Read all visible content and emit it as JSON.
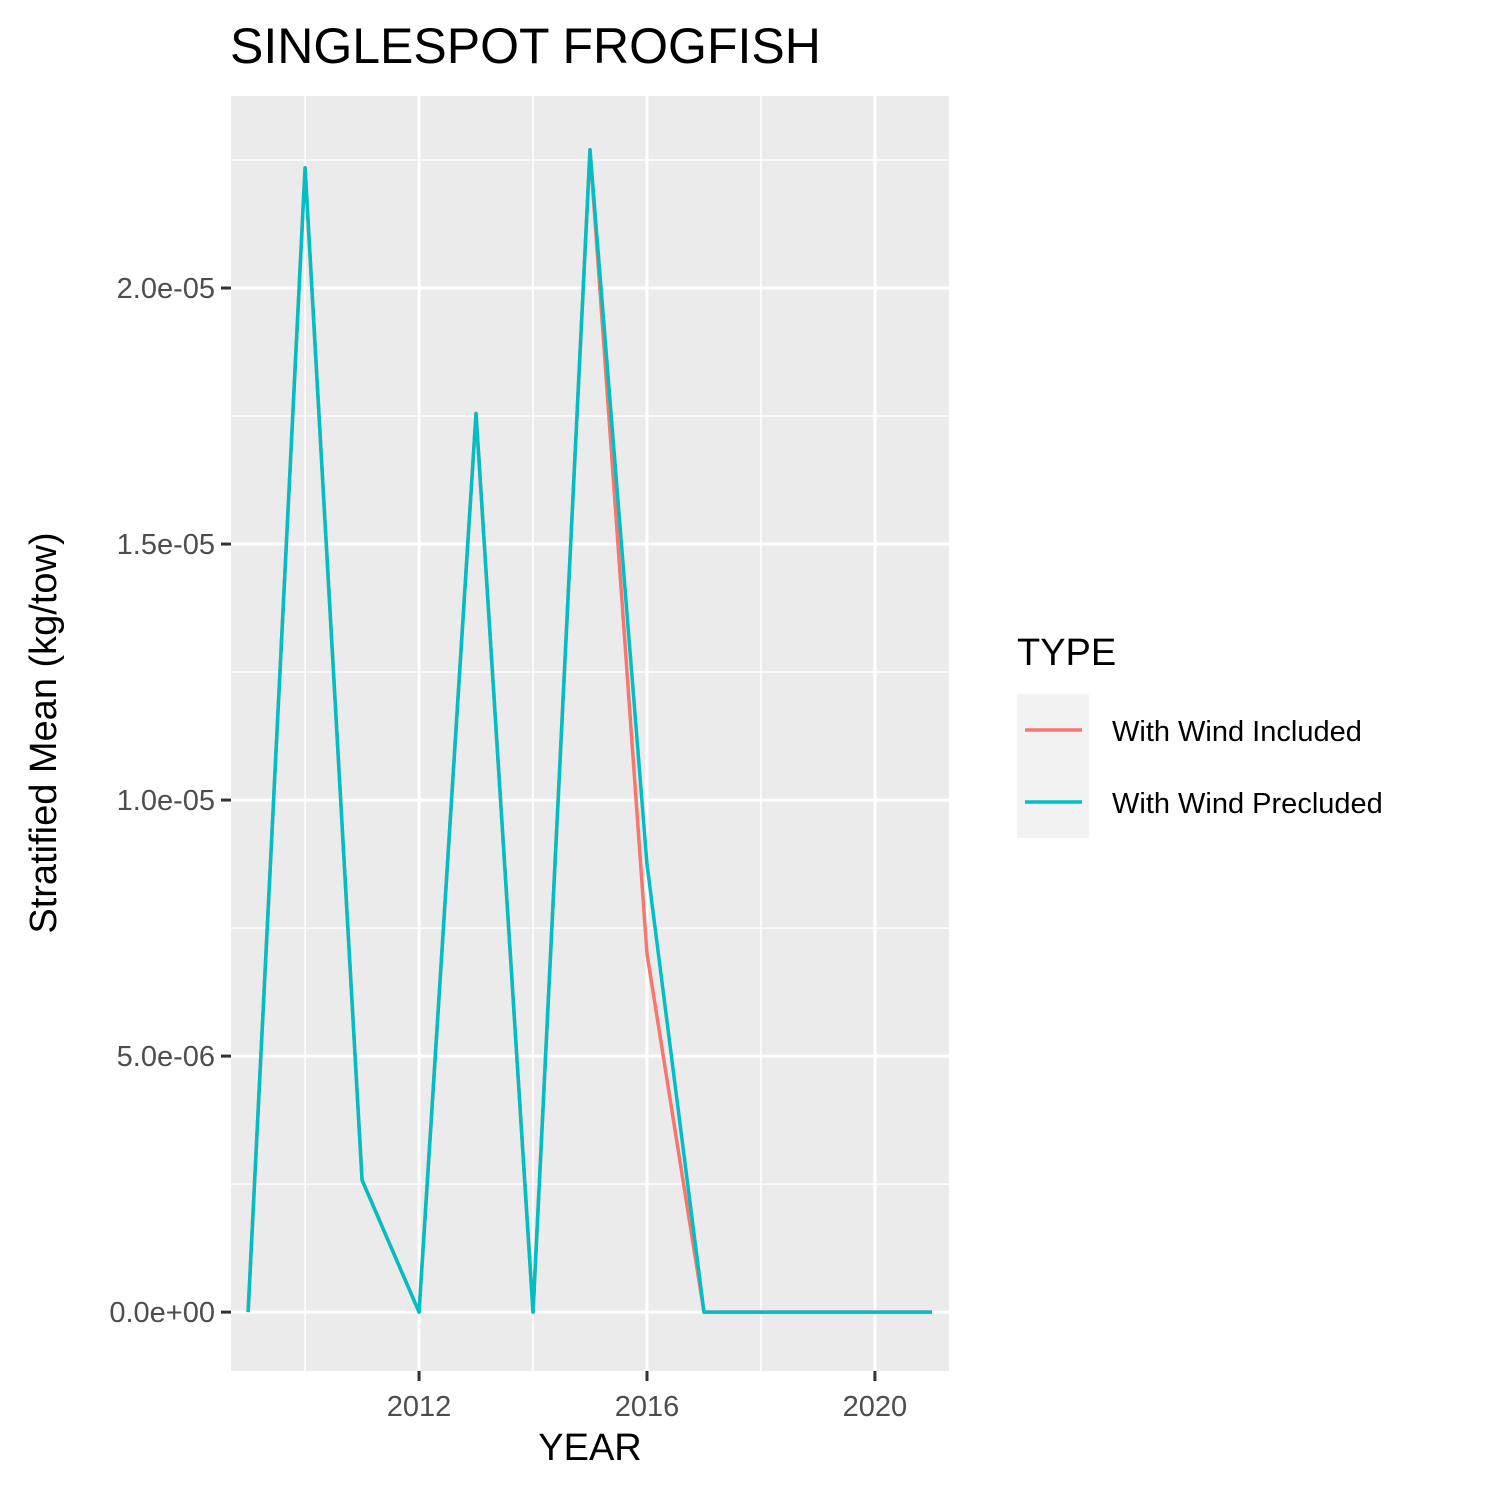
{
  "chart_data": {
    "type": "line",
    "title": "SINGLESPOT FROGFISH",
    "xlabel": "YEAR",
    "ylabel": "Stratified Mean (kg/tow)",
    "xlim": [
      2008.7,
      2021.3
    ],
    "ylim": [
      -1.15e-06,
      2.375e-05
    ],
    "x_ticks": [
      2012,
      2016,
      2020
    ],
    "x_tick_labels": [
      "2012",
      "2016",
      "2020"
    ],
    "y_ticks": [
      0,
      5e-06,
      1e-05,
      1.5e-05,
      2e-05
    ],
    "y_tick_labels": [
      "0.0e+00",
      "5.0e-06",
      "1.0e-05",
      "1.5e-05",
      "2.0e-05"
    ],
    "grid": true,
    "legend": {
      "title": "TYPE",
      "position": "right"
    },
    "x": [
      2009,
      2010,
      2011,
      2012,
      2013,
      2014,
      2015,
      2016,
      2017,
      2018,
      2019,
      2020,
      2021
    ],
    "series": [
      {
        "name": "With Wind Included",
        "color": "#F8766D",
        "values": [
          0,
          2.235e-05,
          2.58e-06,
          0,
          1.755e-05,
          0,
          2.27e-05,
          7e-06,
          0,
          0,
          0,
          0,
          0
        ]
      },
      {
        "name": "With Wind Precluded",
        "color": "#00BFC4",
        "values": [
          0,
          2.235e-05,
          2.58e-06,
          0,
          1.755e-05,
          0,
          2.27e-05,
          8.75e-06,
          0,
          0,
          0,
          0,
          0
        ]
      }
    ]
  }
}
